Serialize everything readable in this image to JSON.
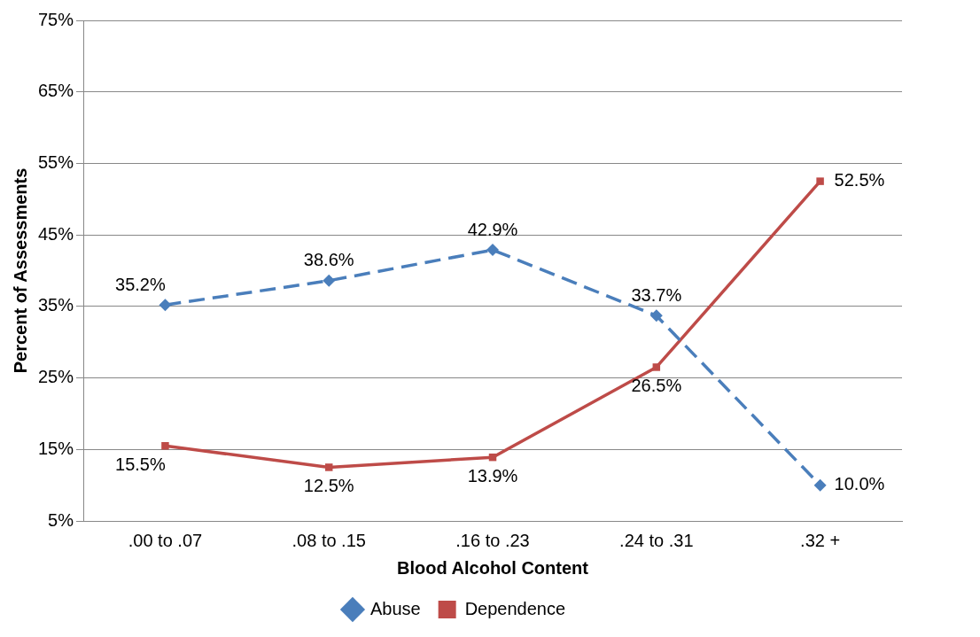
{
  "chart_data": {
    "type": "line",
    "xlabel": "Blood Alcohol Content",
    "ylabel": "Percent of Assessments",
    "categories": [
      ".00 to .07",
      ".08 to .15",
      ".16 to .23",
      ".24 to .31",
      ".32 +"
    ],
    "series": [
      {
        "name": "Abuse",
        "color": "#4a7ebb",
        "values": [
          35.2,
          38.6,
          42.9,
          33.7,
          10.0
        ],
        "value_labels": [
          "35.2%",
          "38.6%",
          "42.9%",
          "33.7%",
          "10.0%"
        ],
        "line_style": "dashed",
        "marker": "diamond"
      },
      {
        "name": "Dependence",
        "color": "#be4b48",
        "values": [
          15.5,
          12.5,
          13.9,
          26.5,
          52.5
        ],
        "value_labels": [
          "15.5%",
          "12.5%",
          "13.9%",
          "26.5%",
          "52.5%"
        ],
        "line_style": "solid",
        "marker": "square"
      }
    ],
    "ylim": [
      5,
      75
    ],
    "yticks": [
      {
        "value": 5,
        "label": "5%"
      },
      {
        "value": 15,
        "label": "15%"
      },
      {
        "value": 25,
        "label": "25%"
      },
      {
        "value": 35,
        "label": "35%"
      },
      {
        "value": 45,
        "label": "45%"
      },
      {
        "value": 55,
        "label": "55%"
      },
      {
        "value": 65,
        "label": "65%"
      },
      {
        "value": 75,
        "label": "75%"
      }
    ],
    "grid": "y",
    "legend": "bottom"
  }
}
